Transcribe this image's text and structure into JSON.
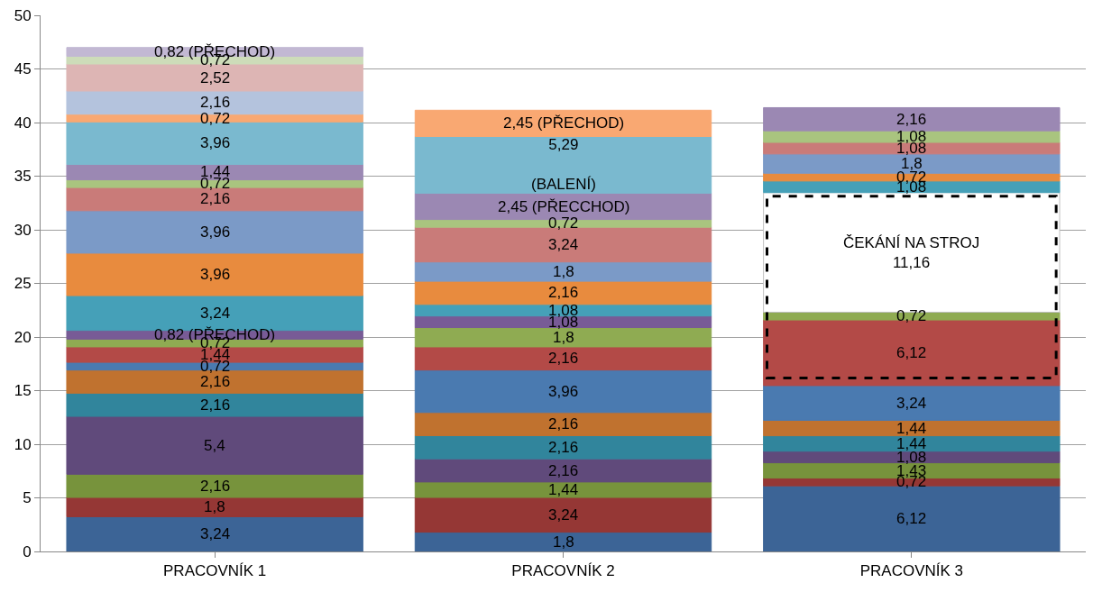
{
  "chart_data": {
    "type": "bar",
    "stacked": true,
    "categories": [
      "PRACOVNÍK 1",
      "PRACOVNÍK 2",
      "PRACOVNÍK 3"
    ],
    "ylim": [
      0,
      50
    ],
    "yticks": [
      0,
      5,
      10,
      15,
      20,
      25,
      30,
      35,
      40,
      45,
      50
    ],
    "grid": "y",
    "series": [
      {
        "values": [
          3.24,
          1.8,
          6.12
        ],
        "colors": [
          "#3c6496",
          "#3c6496",
          "#3c6496"
        ],
        "value_labels": [
          "3,24",
          "1,8",
          "6,12"
        ]
      },
      {
        "values": [
          1.8,
          3.24,
          0.72
        ],
        "colors": [
          "#953735",
          "#953735",
          "#953735"
        ],
        "value_labels": [
          "1,8",
          "3,24",
          "0,72"
        ]
      },
      {
        "values": [
          2.16,
          1.44,
          1.43
        ],
        "colors": [
          "#77933c",
          "#77933c",
          "#77933c"
        ],
        "value_labels": [
          "2,16",
          "1,44",
          "1,43"
        ]
      },
      {
        "values": [
          5.4,
          2.16,
          1.08
        ],
        "colors": [
          "#604a7b",
          "#604a7b",
          "#604a7b"
        ],
        "value_labels": [
          "5,4",
          "2,16",
          "1,08"
        ]
      },
      {
        "values": [
          2.16,
          2.16,
          1.44
        ],
        "colors": [
          "#31859c",
          "#31859c",
          "#31859c"
        ],
        "value_labels": [
          "2,16",
          "2,16",
          "1,44"
        ]
      },
      {
        "values": [
          2.16,
          2.16,
          1.44
        ],
        "colors": [
          "#c0722f",
          "#c0722f",
          "#c0722f"
        ],
        "value_labels": [
          "2,16",
          "2,16",
          "1,44"
        ]
      },
      {
        "values": [
          0.72,
          3.96,
          3.24
        ],
        "colors": [
          "#4a7ab0",
          "#4a7ab0",
          "#4a7ab0"
        ],
        "value_labels": [
          "0,72",
          "3,96",
          "3,24"
        ]
      },
      {
        "values": [
          1.44,
          2.16,
          6.12
        ],
        "colors": [
          "#b34a47",
          "#b34a47",
          "#b34a47"
        ],
        "value_labels": [
          "1,44",
          "2,16",
          "6,12"
        ]
      },
      {
        "values": [
          0.72,
          1.8,
          0.72
        ],
        "colors": [
          "#8fab52",
          "#8fab52",
          "#8fab52"
        ],
        "value_labels": [
          "0,72",
          "1,8",
          "0,72"
        ]
      },
      {
        "values": [
          0.82,
          1.08,
          11.16
        ],
        "colors": [
          "#785b96",
          "#785b96",
          "#ffffff"
        ],
        "value_labels": [
          "0,82 (PŘECHOD)",
          "1,08",
          "ČEKÁNÍ NA STROJ\n11,16"
        ]
      },
      {
        "values": [
          3.24,
          1.08,
          1.08
        ],
        "colors": [
          "#45a0b8",
          "#45a0b8",
          "#45a0b8"
        ],
        "value_labels": [
          "3,24",
          "1,08",
          "1,08"
        ]
      },
      {
        "values": [
          3.96,
          2.16,
          0.72
        ],
        "colors": [
          "#e88b3e",
          "#e88b3e",
          "#e88b3e"
        ],
        "value_labels": [
          "3,96",
          "2,16",
          "0,72"
        ]
      },
      {
        "values": [
          3.96,
          1.8,
          1.8
        ],
        "colors": [
          "#7b9ac7",
          "#7b9ac7",
          "#7b9ac7"
        ],
        "value_labels": [
          "3,96",
          "1,8",
          "1,8"
        ]
      },
      {
        "values": [
          2.16,
          3.24,
          1.08
        ],
        "colors": [
          "#c97b79",
          "#c97b79",
          "#c97b79"
        ],
        "value_labels": [
          "2,16",
          "3,24",
          "1,08"
        ]
      },
      {
        "values": [
          0.72,
          0.72,
          1.08
        ],
        "colors": [
          "#a9c47f",
          "#a9c47f",
          "#a9c47f"
        ],
        "value_labels": [
          "0,72",
          "0,72",
          "1,08"
        ]
      },
      {
        "values": [
          1.44,
          2.45,
          2.16
        ],
        "colors": [
          "#9b88b3",
          "#9b88b3",
          "#9b88b3"
        ],
        "value_labels": [
          "1,44",
          "2,45 (PŘECCHOD)",
          "2,16"
        ]
      },
      {
        "values": [
          3.96,
          5.29,
          null
        ],
        "colors": [
          "#7ab9cf",
          "#7ab9cf",
          "#7ab9cf"
        ],
        "value_labels": [
          "3,96",
          "5,29\n\n(BALENÍ)",
          null
        ]
      },
      {
        "values": [
          0.72,
          2.45,
          null
        ],
        "colors": [
          "#f9a872",
          "#f9a872",
          "#f9a872"
        ],
        "value_labels": [
          "0,72",
          "2,45 (PŘECHOD)",
          null
        ]
      },
      {
        "values": [
          2.16,
          null,
          null
        ],
        "colors": [
          "#b4c3dd",
          "#b4c3dd",
          "#b4c3dd"
        ],
        "value_labels": [
          "2,16",
          null,
          null
        ]
      },
      {
        "values": [
          2.52,
          null,
          null
        ],
        "colors": [
          "#ddb5b4",
          "#ddb5b4",
          "#ddb5b4"
        ],
        "value_labels": [
          "2,52",
          null,
          null
        ]
      },
      {
        "values": [
          0.72,
          null,
          null
        ],
        "colors": [
          "#cddcb9",
          "#cddcb9",
          "#cddcb9"
        ],
        "value_labels": [
          "0,72",
          null,
          null
        ]
      },
      {
        "values": [
          0.82,
          null,
          null
        ],
        "colors": [
          "#c2b8d3",
          "#c2b8d3",
          "#c2b8d3"
        ],
        "value_labels": [
          "0,82 (PŘECHOD)",
          null,
          null
        ]
      }
    ]
  }
}
